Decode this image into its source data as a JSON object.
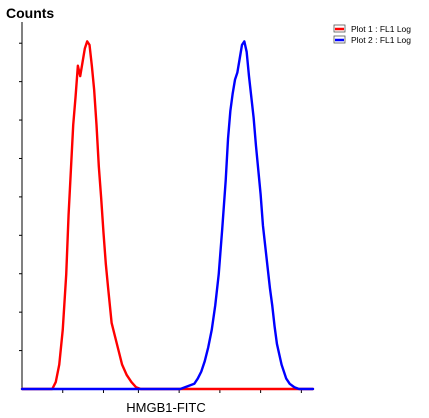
{
  "chart_data": {
    "type": "line",
    "title": "",
    "xlabel": "HMGB1-FITC",
    "ylabel": "Counts",
    "legend_position": "top-right",
    "grid": false,
    "series": [
      {
        "name": "Plot 1 : FL1 Log",
        "color": "#ff0000",
        "points": [
          [
            0.0,
            0
          ],
          [
            2.6,
            0
          ],
          [
            2.9,
            0.02
          ],
          [
            3.2,
            0.07
          ],
          [
            3.5,
            0.17
          ],
          [
            3.8,
            0.33
          ],
          [
            4.0,
            0.5
          ],
          [
            4.2,
            0.63
          ],
          [
            4.4,
            0.76
          ],
          [
            4.6,
            0.84
          ],
          [
            4.8,
            0.93
          ],
          [
            5.0,
            0.9
          ],
          [
            5.2,
            0.94
          ],
          [
            5.4,
            0.98
          ],
          [
            5.6,
            1.0
          ],
          [
            5.8,
            0.99
          ],
          [
            6.0,
            0.93
          ],
          [
            6.2,
            0.86
          ],
          [
            6.4,
            0.76
          ],
          [
            6.6,
            0.64
          ],
          [
            6.8,
            0.55
          ],
          [
            7.0,
            0.45
          ],
          [
            7.2,
            0.36
          ],
          [
            7.4,
            0.29
          ],
          [
            7.7,
            0.19
          ],
          [
            8.0,
            0.15
          ],
          [
            8.3,
            0.11
          ],
          [
            8.6,
            0.07
          ],
          [
            9.0,
            0.04
          ],
          [
            9.4,
            0.02
          ],
          [
            9.8,
            0.005
          ],
          [
            10.2,
            0
          ],
          [
            25.0,
            0
          ]
        ]
      },
      {
        "name": "Plot 2 : FL1 Log",
        "color": "#0000ff",
        "points": [
          [
            0.0,
            0
          ],
          [
            13.6,
            0
          ],
          [
            14.0,
            0.005
          ],
          [
            14.4,
            0.01
          ],
          [
            14.8,
            0.015
          ],
          [
            15.1,
            0.03
          ],
          [
            15.4,
            0.05
          ],
          [
            15.7,
            0.08
          ],
          [
            16.0,
            0.12
          ],
          [
            16.3,
            0.17
          ],
          [
            16.6,
            0.24
          ],
          [
            16.9,
            0.33
          ],
          [
            17.2,
            0.46
          ],
          [
            17.5,
            0.6
          ],
          [
            17.7,
            0.72
          ],
          [
            17.9,
            0.8
          ],
          [
            18.1,
            0.85
          ],
          [
            18.3,
            0.89
          ],
          [
            18.5,
            0.91
          ],
          [
            18.7,
            0.95
          ],
          [
            18.9,
            0.99
          ],
          [
            19.1,
            1.0
          ],
          [
            19.3,
            0.97
          ],
          [
            19.5,
            0.9
          ],
          [
            19.7,
            0.84
          ],
          [
            19.9,
            0.78
          ],
          [
            20.1,
            0.7
          ],
          [
            20.3,
            0.63
          ],
          [
            20.5,
            0.56
          ],
          [
            20.7,
            0.47
          ],
          [
            20.9,
            0.41
          ],
          [
            21.1,
            0.35
          ],
          [
            21.3,
            0.29
          ],
          [
            21.5,
            0.24
          ],
          [
            21.7,
            0.18
          ],
          [
            21.9,
            0.13
          ],
          [
            22.1,
            0.1
          ],
          [
            22.3,
            0.07
          ],
          [
            22.5,
            0.05
          ],
          [
            22.7,
            0.03
          ],
          [
            23.0,
            0.015
          ],
          [
            23.4,
            0.005
          ],
          [
            23.8,
            0
          ],
          [
            25.0,
            0
          ]
        ]
      }
    ],
    "xlim": [
      0,
      25
    ],
    "ylim": [
      0,
      1.05
    ]
  },
  "colors": {
    "axis": "#000000",
    "background": "#ffffff"
  }
}
